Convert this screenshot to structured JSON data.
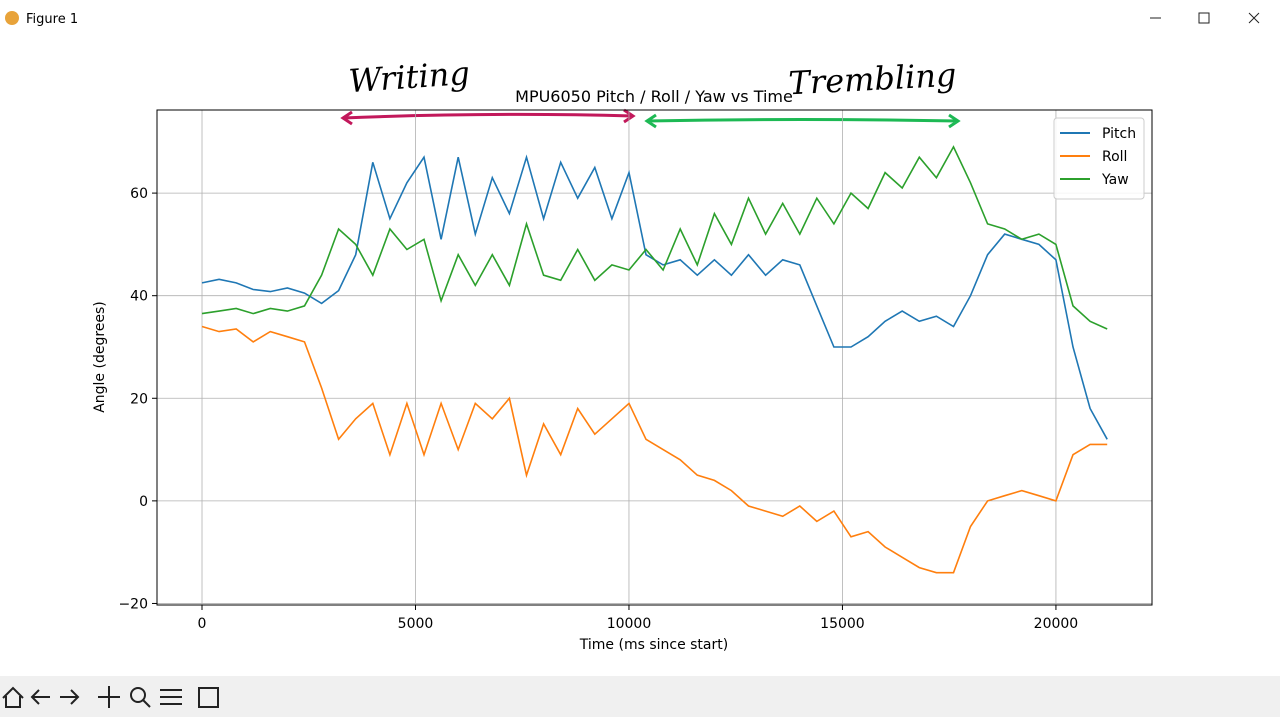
{
  "window": {
    "title": "Figure 1"
  },
  "chart_data": {
    "type": "line",
    "title": "MPU6050 Pitch / Roll / Yaw vs Time",
    "x_label": "Time (ms since start)",
    "y_label": "Angle (degrees)",
    "x": [
      0,
      400,
      800,
      1200,
      1600,
      2000,
      2400,
      2800,
      3200,
      3600,
      4000,
      4400,
      4800,
      5200,
      5600,
      6000,
      6400,
      6800,
      7200,
      7600,
      8000,
      8400,
      8800,
      9200,
      9600,
      10000,
      10400,
      10800,
      11200,
      11600,
      12000,
      12400,
      12800,
      13200,
      13600,
      14000,
      14400,
      14800,
      15200,
      15600,
      16000,
      16400,
      16800,
      17200,
      17600,
      18000,
      18400,
      18800,
      19200,
      19600,
      20000,
      20400,
      20800,
      21200
    ],
    "series": [
      {
        "name": "Pitch",
        "color": "#1f77b4",
        "values": [
          42.5,
          43.2,
          42.5,
          41.2,
          40.8,
          41.5,
          40.5,
          38.5,
          41,
          48,
          66,
          55,
          62,
          67,
          51,
          67,
          52,
          63,
          56,
          67,
          55,
          66,
          59,
          65,
          55,
          64,
          48,
          46,
          47,
          44,
          47,
          44,
          48,
          44,
          47,
          46,
          38,
          30,
          30,
          32,
          35,
          37,
          35,
          36,
          34,
          40,
          48,
          52,
          51,
          50,
          47,
          30,
          18,
          12
        ]
      },
      {
        "name": "Roll",
        "color": "#ff7f0e",
        "values": [
          34,
          33,
          33.5,
          31,
          33,
          32,
          31,
          22,
          12,
          16,
          19,
          9,
          19,
          9,
          19,
          10,
          19,
          16,
          20,
          5,
          15,
          9,
          18,
          13,
          16,
          19,
          12,
          10,
          8,
          5,
          4,
          2,
          -1,
          -2,
          -3,
          -1,
          -4,
          -2,
          -7,
          -6,
          -9,
          -11,
          -13,
          -14,
          -14,
          -5,
          0,
          1,
          2,
          1,
          0,
          9,
          11,
          11
        ]
      },
      {
        "name": "Yaw",
        "color": "#2ca02c",
        "values": [
          36.5,
          37,
          37.5,
          36.5,
          37.5,
          37,
          38,
          44,
          53,
          50,
          44,
          53,
          49,
          51,
          39,
          48,
          42,
          48,
          42,
          54,
          44,
          43,
          49,
          43,
          46,
          45,
          49,
          45,
          53,
          46,
          56,
          50,
          59,
          52,
          58,
          52,
          59,
          54,
          60,
          57,
          64,
          61,
          67,
          63,
          69,
          62,
          54,
          53,
          51,
          52,
          50,
          38,
          35,
          33.5
        ]
      }
    ],
    "xlim": [
      -1054,
      22250
    ],
    "ylim": [
      -20.3,
      76.2
    ],
    "xticks": [
      0,
      5000,
      10000,
      15000,
      20000
    ],
    "yticks": [
      {
        "value": -20,
        "label": "−20"
      },
      0,
      20,
      40,
      60
    ],
    "grid": true,
    "legend": "upper right",
    "annotations": [
      {
        "text": "Writing",
        "color": "#c2185b"
      },
      {
        "text": "Trembling",
        "color": "#1db954"
      }
    ]
  }
}
